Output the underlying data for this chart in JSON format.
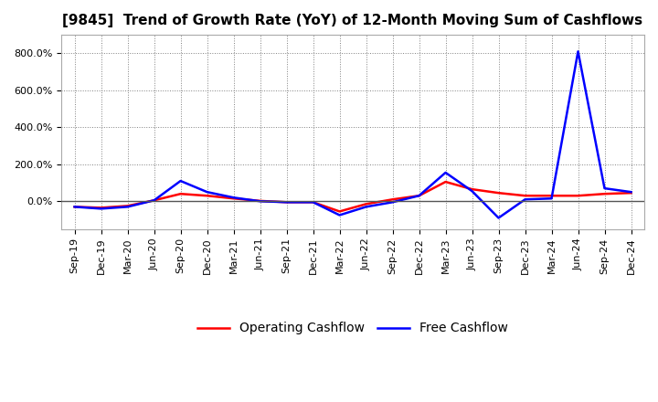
{
  "title": "[9845]  Trend of Growth Rate (YoY) of 12-Month Moving Sum of Cashflows",
  "x_labels": [
    "Sep-19",
    "Dec-19",
    "Mar-20",
    "Jun-20",
    "Sep-20",
    "Dec-20",
    "Mar-21",
    "Jun-21",
    "Sep-21",
    "Dec-21",
    "Mar-22",
    "Jun-22",
    "Sep-22",
    "Dec-22",
    "Mar-23",
    "Jun-23",
    "Sep-23",
    "Dec-23",
    "Mar-24",
    "Jun-24",
    "Sep-24",
    "Dec-24"
  ],
  "operating_cashflow": [
    -30,
    -35,
    -25,
    5,
    40,
    30,
    15,
    2,
    -5,
    -5,
    -55,
    -15,
    10,
    30,
    105,
    65,
    45,
    30,
    30,
    30,
    40,
    45
  ],
  "free_cashflow": [
    -30,
    -40,
    -30,
    5,
    110,
    50,
    20,
    0,
    -5,
    -5,
    -75,
    -30,
    -5,
    30,
    155,
    55,
    -90,
    10,
    15,
    810,
    70,
    50
  ],
  "operating_color": "#ff0000",
  "free_color": "#0000ff",
  "background_color": "#ffffff",
  "grid_color": "#808080",
  "ylim": [
    -150,
    900
  ],
  "ytick_positions": [
    0,
    200,
    400,
    600,
    800
  ],
  "ytick_labels": [
    "0.0%",
    "200.0%",
    "400.0%",
    "600.0%",
    "800.0%"
  ],
  "legend_labels": [
    "Operating Cashflow",
    "Free Cashflow"
  ],
  "title_fontsize": 11,
  "tick_fontsize": 8,
  "legend_fontsize": 10
}
